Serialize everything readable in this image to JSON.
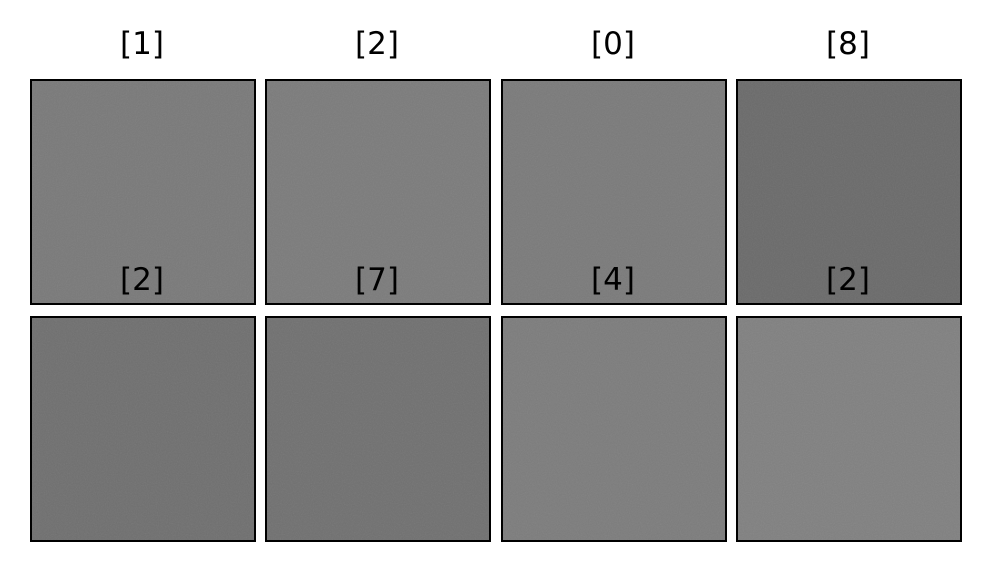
{
  "tiles": [
    {
      "label": "[1]",
      "gray": "#797979"
    },
    {
      "label": "[2]",
      "gray": "#7b7b7b"
    },
    {
      "label": "[0]",
      "gray": "#7a7a7a"
    },
    {
      "label": "[8]",
      "gray": "#6a6a6a"
    },
    {
      "label": "[2]",
      "gray": "#6f6f6f"
    },
    {
      "label": "[7]",
      "gray": "#707070"
    },
    {
      "label": "[4]",
      "gray": "#7c7c7c"
    },
    {
      "label": "[2]",
      "gray": "#808080"
    }
  ]
}
